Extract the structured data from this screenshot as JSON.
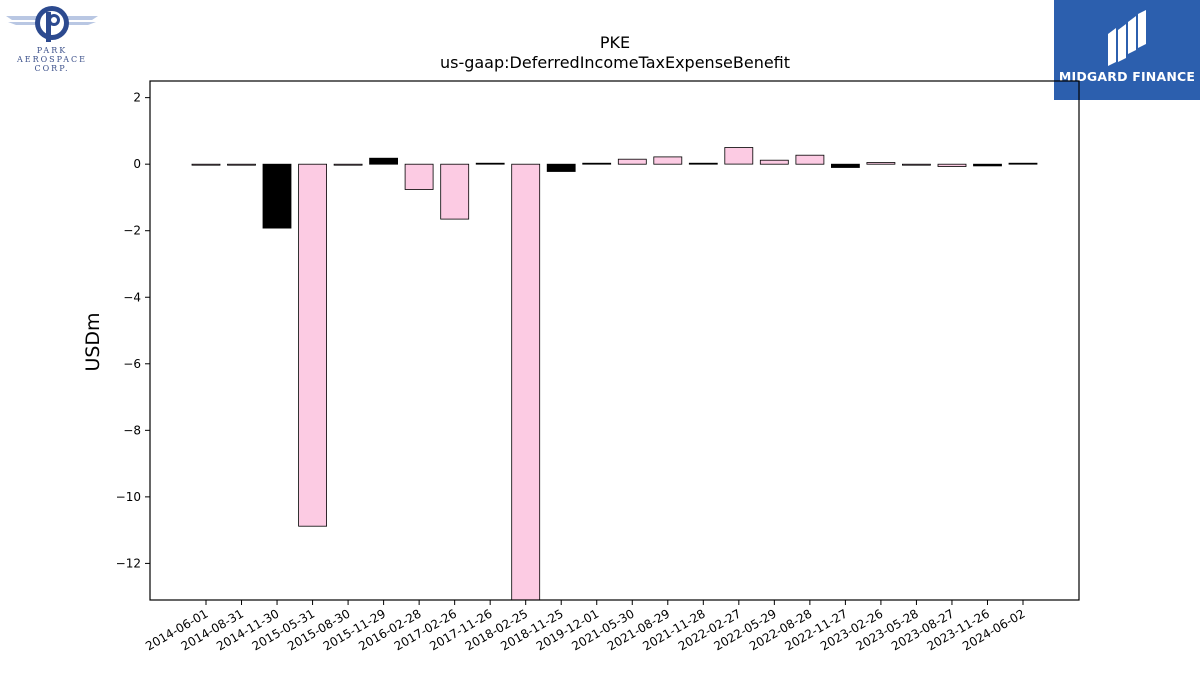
{
  "logos": {
    "left": {
      "name": "Park Aerospace Corp.",
      "lines": [
        "PARK",
        "AEROSPACE",
        "CORP."
      ]
    },
    "right": {
      "name": "MIDGARD FINANCE"
    }
  },
  "colors": {
    "positive_fill": "#fccbe3",
    "negative_fill": "#000000",
    "axis": "#000000",
    "logo_blue": "#2c5fae"
  },
  "chart_data": {
    "type": "bar",
    "title": "PKE",
    "subtitle": "us-gaap:DeferredIncomeTaxExpenseBenefit",
    "xlabel": "",
    "ylabel": "USDm",
    "ylim": [
      -13.1,
      2.5
    ],
    "yticks": [
      2,
      0,
      -2,
      -4,
      -6,
      -8,
      -10,
      -12
    ],
    "ytick_labels": [
      "2",
      "0",
      "−2",
      "−4",
      "−6",
      "−8",
      "−10",
      "−12"
    ],
    "grid": false,
    "legend": "none",
    "categories": [
      "2014-06-01",
      "2014-08-31",
      "2014-11-30",
      "2015-05-31",
      "2015-08-30",
      "2015-11-29",
      "2016-02-28",
      "2017-02-26",
      "2017-11-26",
      "2018-02-25",
      "2018-11-25",
      "2019-12-01",
      "2021-05-30",
      "2021-08-29",
      "2021-11-28",
      "2022-02-27",
      "2022-05-29",
      "2022-08-28",
      "2022-11-27",
      "2023-02-26",
      "2023-05-28",
      "2023-08-27",
      "2023-11-26",
      "2024-06-02"
    ],
    "values": [
      -0.01,
      -0.01,
      -1.92,
      -10.88,
      -0.01,
      0.18,
      -0.76,
      -1.65,
      0.02,
      -13.5,
      -0.22,
      0.02,
      0.15,
      0.22,
      0.02,
      0.5,
      0.12,
      0.27,
      -0.1,
      0.05,
      -0.02,
      -0.07,
      -0.05,
      0.03
    ],
    "bar_colors": [
      "pink",
      "pink",
      "black",
      "pink",
      "pink",
      "black",
      "pink",
      "pink",
      "black",
      "pink",
      "black",
      "black",
      "pink",
      "pink",
      "black",
      "pink",
      "pink",
      "pink",
      "black",
      "pink",
      "pink",
      "pink",
      "black",
      "black"
    ]
  }
}
